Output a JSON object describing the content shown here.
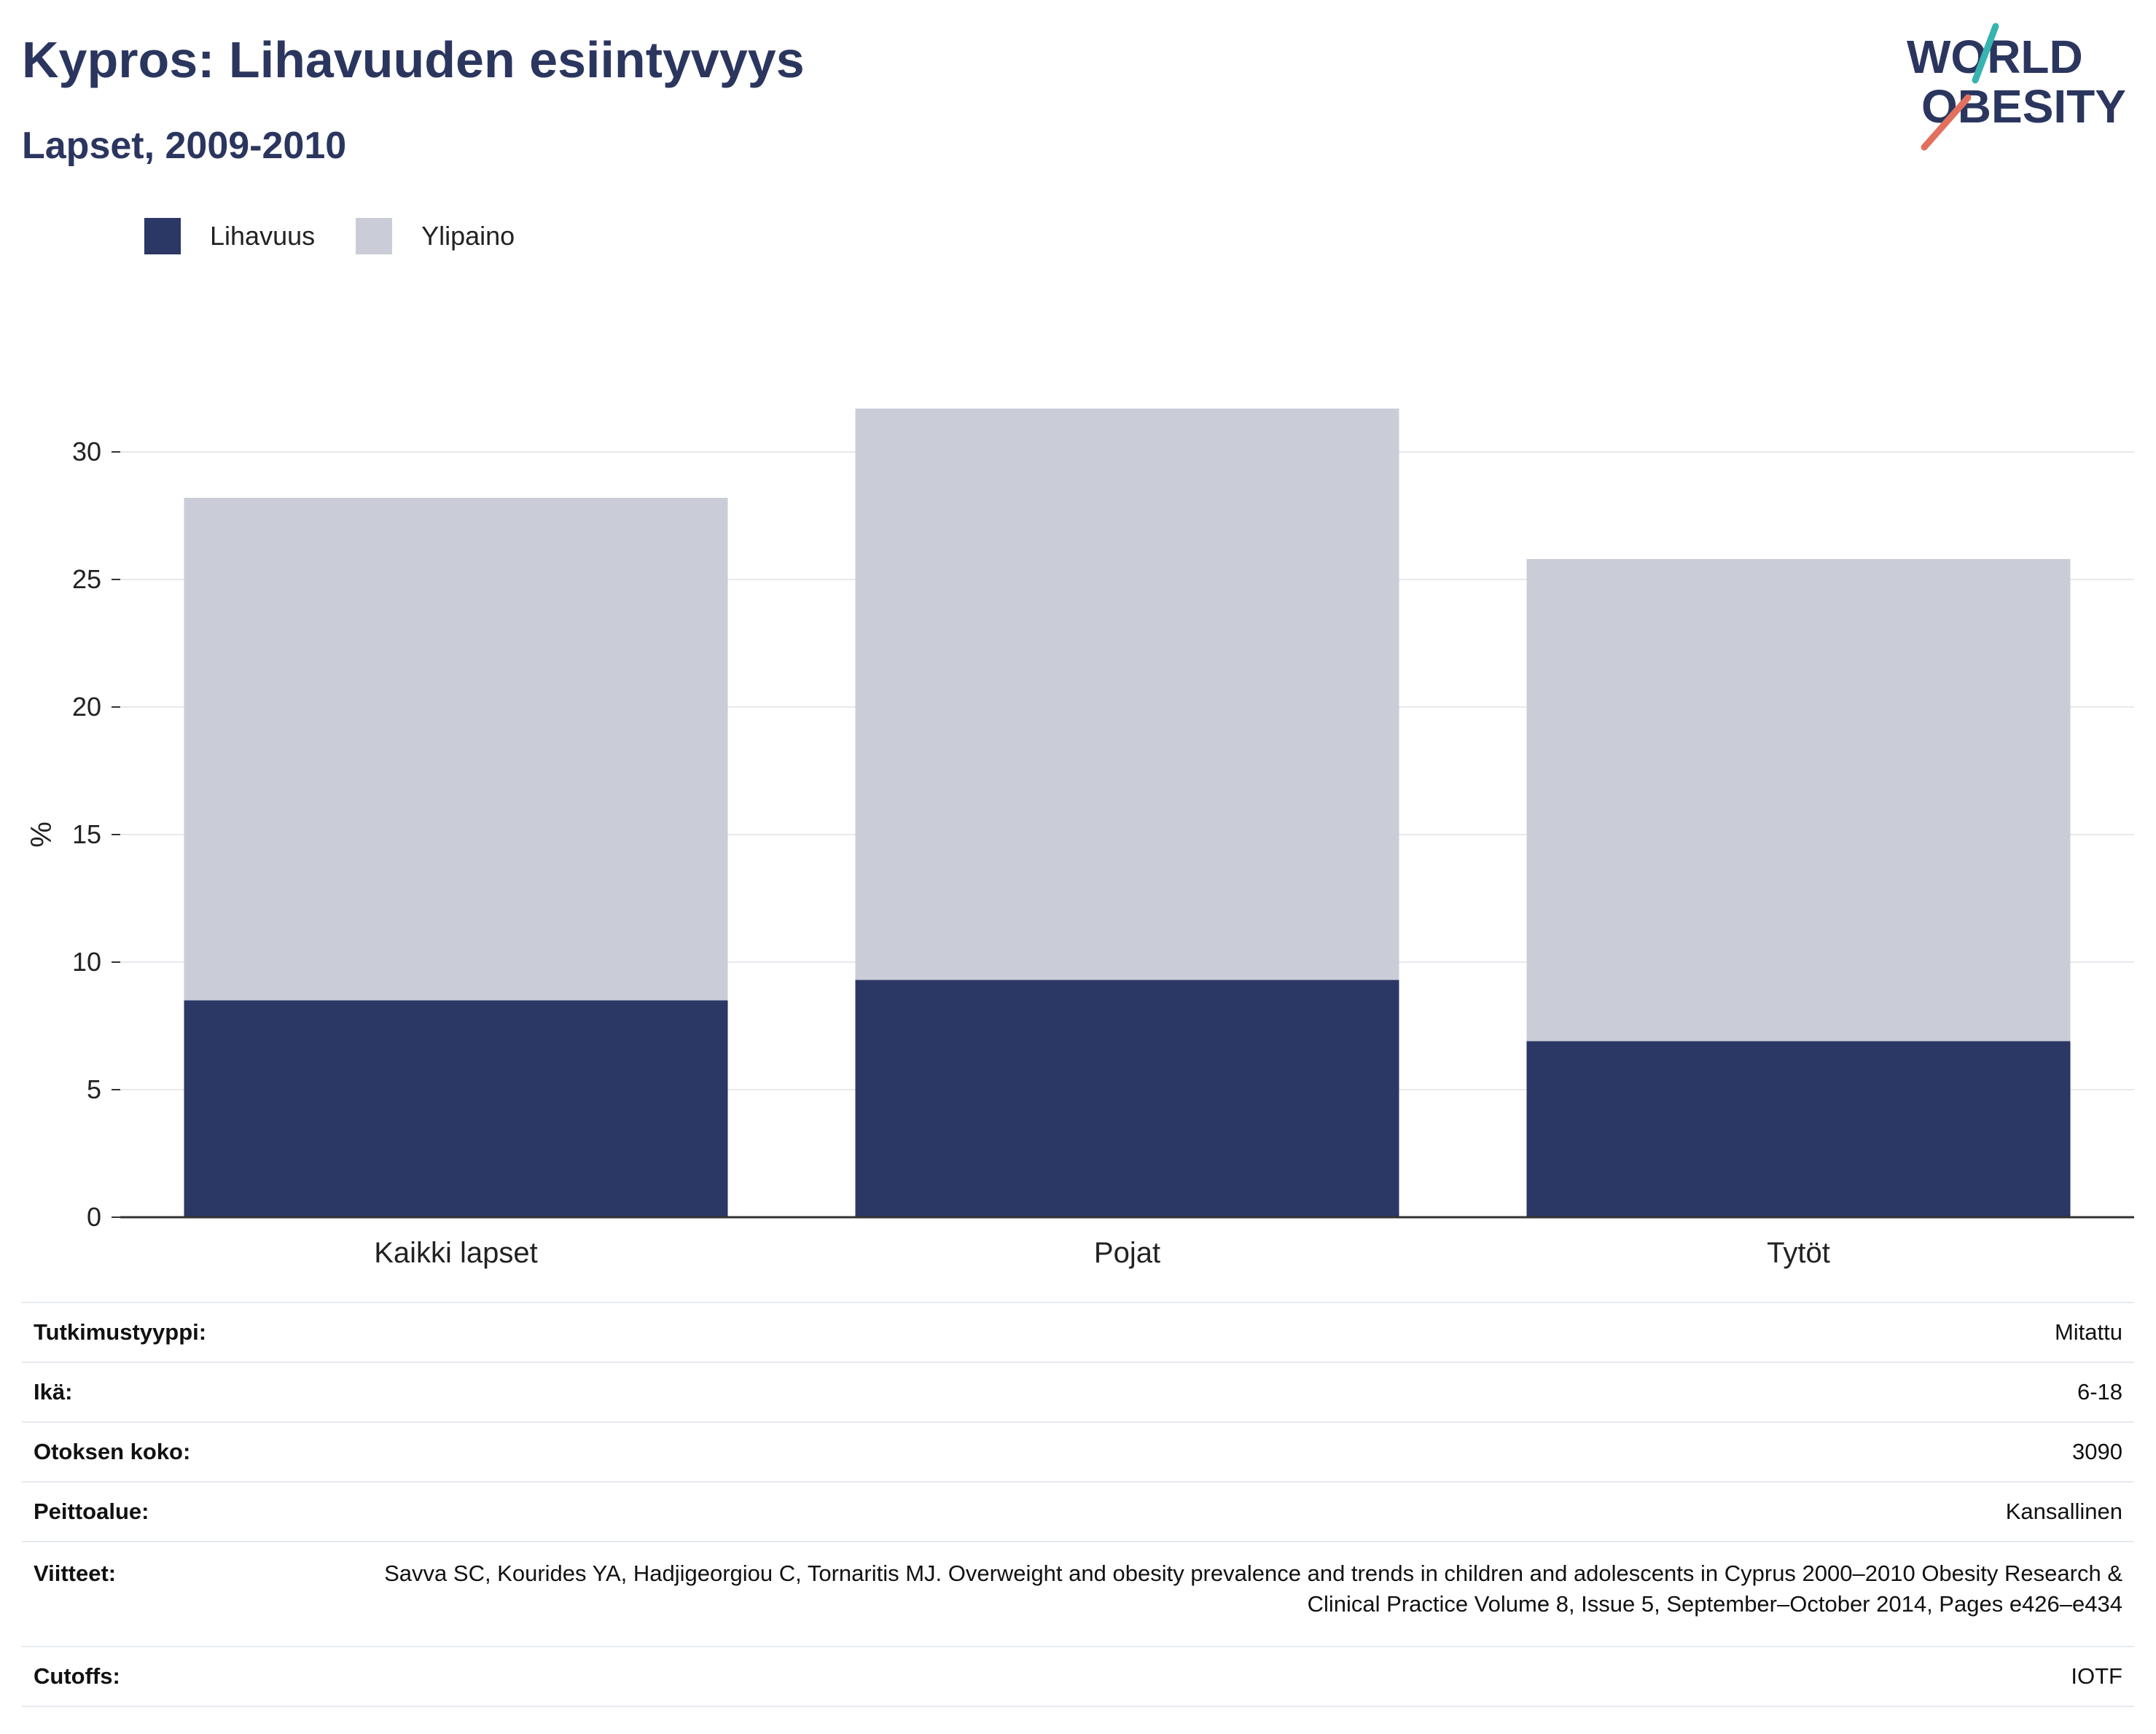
{
  "header": {
    "title": "Kypros: Lihavuuden esiintyvyys",
    "subtitle": "Lapset, 2009-2010"
  },
  "logo": {
    "line1": "WORLD",
    "line2": "OBESITY"
  },
  "legend": [
    {
      "label": "Lihavuus",
      "color": "#2b3764"
    },
    {
      "label": "Ylipaino",
      "color": "#cacdd8"
    }
  ],
  "chart_data": {
    "type": "bar",
    "stacked": true,
    "categories": [
      "Kaikki lapset",
      "Pojat",
      "Tytöt"
    ],
    "series": [
      {
        "name": "Lihavuus",
        "values": [
          8.5,
          9.3,
          6.9
        ],
        "color": "#2b3764"
      },
      {
        "name": "Ylipaino",
        "values": [
          19.7,
          22.4,
          18.9
        ],
        "color": "#cacdd8"
      }
    ],
    "ylabel": "%",
    "xlabel": "",
    "ylim": [
      0,
      32
    ],
    "yticks": [
      0,
      5,
      10,
      15,
      20,
      25,
      30
    ],
    "grid": true,
    "legend_position": "top-left"
  },
  "meta": [
    {
      "key": "Tutkimustyyppi:",
      "value": "Mitattu"
    },
    {
      "key": "Ikä:",
      "value": "6-18"
    },
    {
      "key": "Otoksen koko:",
      "value": "3090"
    },
    {
      "key": "Peittoalue:",
      "value": "Kansallinen"
    },
    {
      "key": "Viitteet:",
      "value": "Savva SC, Kourides YA, Hadjigeorgiou C, Tornaritis MJ. Overweight and obesity prevalence and trends in children and adolescents in Cyprus 2000–2010 Obesity Research & Clinical Practice Volume 8, Issue 5, September–October 2014, Pages e426–e434"
    },
    {
      "key": "Cutoffs:",
      "value": "IOTF"
    }
  ]
}
